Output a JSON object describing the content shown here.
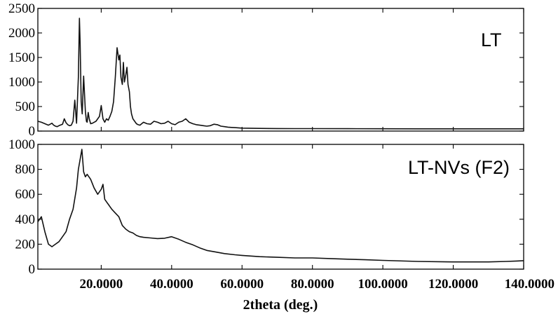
{
  "chart_data": [
    {
      "type": "line",
      "panel_label": "LT",
      "xlabel": "",
      "ylabel": "",
      "xlim": [
        2,
        140
      ],
      "ylim": [
        0,
        2500
      ],
      "yticks": [
        0,
        500,
        1000,
        1500,
        2000,
        2500
      ],
      "yticklabels": [
        "0",
        "500",
        "1000",
        "1500",
        "2000",
        "2500"
      ],
      "series": [
        {
          "x": [
            2,
            3,
            4,
            5,
            6,
            6.5,
            7,
            7.5,
            8,
            9,
            9.5,
            10,
            10.5,
            11,
            11.5,
            12,
            12.5,
            13,
            13.5,
            13.8,
            14,
            14.3,
            14.6,
            15,
            15.5,
            15.8,
            16,
            16.3,
            16.6,
            17,
            17.5,
            18,
            18.5,
            19,
            19.5,
            20,
            20.5,
            21,
            21.5,
            22,
            22.5,
            23,
            23.5,
            24,
            24.5,
            25,
            25.3,
            25.6,
            26,
            26.3,
            26.6,
            27,
            27.3,
            27.6,
            28,
            28.3,
            28.6,
            29,
            29.5,
            30,
            30.5,
            31,
            32,
            33,
            34,
            35,
            36,
            37,
            38,
            39,
            40,
            41,
            42,
            43,
            44,
            45,
            46,
            47,
            48,
            49,
            50,
            51,
            52,
            53,
            54,
            55,
            56,
            57,
            58,
            60,
            65,
            70,
            75,
            80,
            90,
            100,
            110,
            120,
            130,
            140
          ],
          "y": [
            200,
            180,
            150,
            120,
            160,
            120,
            100,
            90,
            110,
            140,
            250,
            170,
            130,
            110,
            120,
            200,
            630,
            160,
            1100,
            2300,
            1800,
            600,
            350,
            1120,
            400,
            200,
            180,
            380,
            250,
            150,
            160,
            180,
            200,
            250,
            300,
            520,
            250,
            180,
            250,
            220,
            300,
            400,
            600,
            1100,
            1700,
            1450,
            1550,
            1100,
            950,
            1400,
            1000,
            1150,
            1300,
            950,
            800,
            500,
            350,
            250,
            200,
            150,
            130,
            120,
            180,
            150,
            140,
            200,
            180,
            150,
            160,
            200,
            150,
            130,
            180,
            200,
            250,
            180,
            150,
            130,
            120,
            110,
            100,
            110,
            140,
            130,
            100,
            90,
            80,
            75,
            70,
            60,
            55,
            52,
            50,
            50,
            48,
            47,
            46,
            46,
            45,
            45
          ]
        }
      ]
    },
    {
      "type": "line",
      "panel_label": "LT-NVs (F2)",
      "xlabel": "2theta (deg.)",
      "ylabel": "",
      "xlim": [
        2,
        140
      ],
      "ylim": [
        0,
        1000
      ],
      "yticks": [
        0,
        200,
        400,
        600,
        800,
        1000
      ],
      "yticklabels": [
        "0",
        "200",
        "400",
        "600",
        "800",
        "1000"
      ],
      "xticks": [
        20,
        40,
        60,
        80,
        100,
        120,
        140
      ],
      "xticklabels": [
        "20.0000",
        "40.0000",
        "60.0000",
        "80.0000",
        "100.0000",
        "120.0000",
        "140.0000"
      ],
      "series": [
        {
          "x": [
            2,
            3,
            4,
            5,
            6,
            7,
            8,
            9,
            10,
            11,
            12,
            13,
            13.5,
            14,
            14.5,
            15,
            15.5,
            16,
            17,
            18,
            19,
            20,
            20.5,
            21,
            21.5,
            22,
            23,
            24,
            25,
            26,
            27,
            28,
            29,
            30,
            31,
            32,
            34,
            36,
            38,
            40,
            42,
            44,
            46,
            48,
            50,
            52,
            55,
            58,
            60,
            65,
            70,
            75,
            80,
            85,
            90,
            95,
            100,
            110,
            120,
            130,
            135,
            138,
            140
          ],
          "y": [
            380,
            420,
            300,
            200,
            180,
            200,
            220,
            260,
            300,
            400,
            480,
            650,
            800,
            880,
            960,
            780,
            740,
            760,
            720,
            650,
            600,
            640,
            680,
            560,
            540,
            520,
            480,
            450,
            420,
            350,
            320,
            300,
            290,
            270,
            260,
            255,
            250,
            245,
            248,
            260,
            240,
            215,
            195,
            170,
            150,
            140,
            125,
            115,
            110,
            100,
            95,
            90,
            90,
            85,
            80,
            75,
            70,
            62,
            58,
            58,
            62,
            65,
            68
          ]
        }
      ]
    }
  ]
}
